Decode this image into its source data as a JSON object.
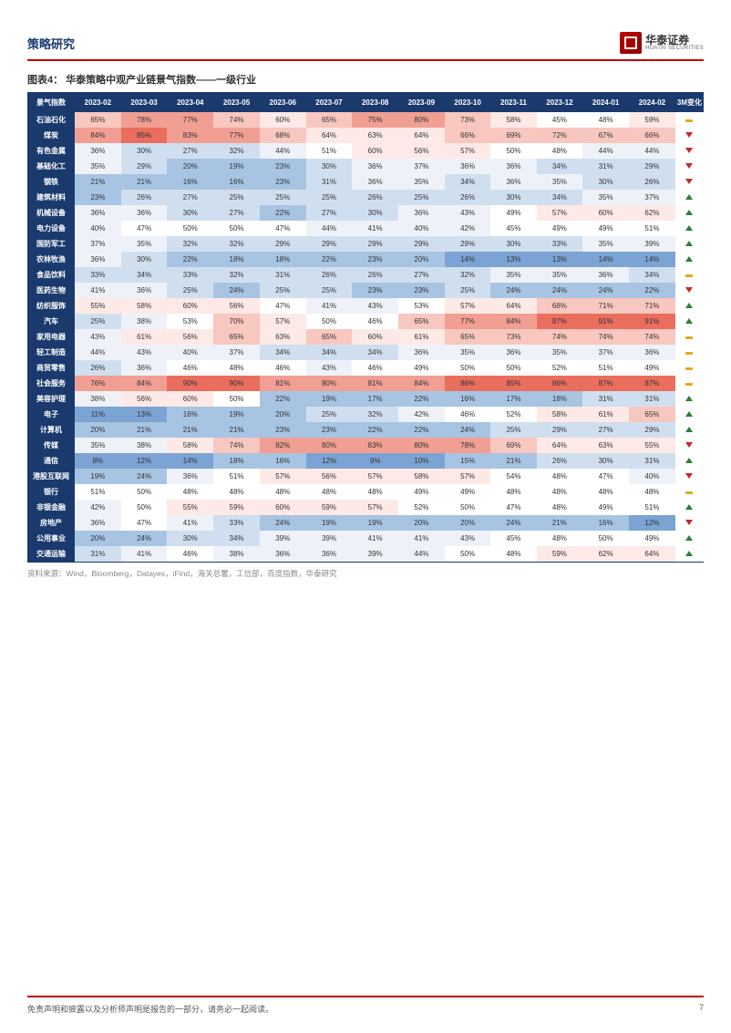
{
  "header": {
    "title": "策略研究",
    "logo_cn": "华泰证券",
    "logo_en": "HUATAI SECURITIES"
  },
  "chart": {
    "title": "图表4：  华泰策略中观产业链景气指数——一级行业",
    "corner_label": "景气指数",
    "columns": [
      "2023-02",
      "2023-03",
      "2023-04",
      "2023-05",
      "2023-06",
      "2023-07",
      "2023-08",
      "2023-09",
      "2023-10",
      "2023-11",
      "2023-12",
      "2024-01",
      "2024-02",
      "3M变化"
    ],
    "colors": {
      "header_bg": "#1a3a6e",
      "header_fg": "#ffffff",
      "up": "#2e7d32",
      "down": "#c62828",
      "flat": "#e6a817",
      "scale": [
        "#4f81bd",
        "#7ba3d3",
        "#a8c4e3",
        "#d0dff0",
        "#eef2f8",
        "#ffffff",
        "#fde9e6",
        "#f8c7bf",
        "#f19f93",
        "#ea6e5e",
        "#e14b3b"
      ]
    },
    "rows": [
      {
        "label": "石油石化",
        "v": [
          65,
          78,
          77,
          74,
          60,
          65,
          75,
          80,
          73,
          58,
          45,
          48,
          59
        ],
        "trend": "flat"
      },
      {
        "label": "煤炭",
        "v": [
          84,
          85,
          83,
          77,
          68,
          64,
          63,
          64,
          66,
          69,
          72,
          67,
          66
        ],
        "trend": "down"
      },
      {
        "label": "有色金属",
        "v": [
          36,
          30,
          27,
          32,
          44,
          51,
          60,
          56,
          57,
          50,
          48,
          44,
          44
        ],
        "trend": "down"
      },
      {
        "label": "基础化工",
        "v": [
          35,
          29,
          20,
          19,
          23,
          30,
          36,
          37,
          36,
          36,
          34,
          31,
          29
        ],
        "trend": "down"
      },
      {
        "label": "钢铁",
        "v": [
          21,
          21,
          16,
          16,
          23,
          31,
          36,
          35,
          34,
          36,
          35,
          30,
          26
        ],
        "trend": "down"
      },
      {
        "label": "建筑材料",
        "v": [
          23,
          26,
          27,
          25,
          25,
          25,
          26,
          25,
          26,
          30,
          34,
          35,
          37
        ],
        "trend": "up"
      },
      {
        "label": "机械设备",
        "v": [
          36,
          36,
          30,
          27,
          22,
          27,
          30,
          36,
          43,
          49,
          57,
          60,
          62
        ],
        "trend": "up"
      },
      {
        "label": "电力设备",
        "v": [
          40,
          47,
          50,
          50,
          47,
          44,
          41,
          40,
          42,
          45,
          49,
          49,
          51
        ],
        "trend": "up"
      },
      {
        "label": "国防军工",
        "v": [
          37,
          35,
          32,
          32,
          29,
          29,
          29,
          29,
          29,
          30,
          33,
          35,
          39
        ],
        "trend": "up"
      },
      {
        "label": "农林牧渔",
        "v": [
          36,
          30,
          22,
          18,
          18,
          22,
          23,
          20,
          14,
          13,
          13,
          14,
          14
        ],
        "trend": "up"
      },
      {
        "label": "食品饮料",
        "v": [
          33,
          34,
          33,
          32,
          31,
          26,
          26,
          27,
          32,
          35,
          35,
          36,
          34
        ],
        "trend": "flat"
      },
      {
        "label": "医药生物",
        "v": [
          41,
          36,
          25,
          24,
          25,
          25,
          23,
          23,
          25,
          24,
          24,
          24,
          22
        ],
        "trend": "down"
      },
      {
        "label": "纺织服饰",
        "v": [
          55,
          58,
          60,
          56,
          47,
          41,
          43,
          53,
          57,
          64,
          68,
          71,
          71
        ],
        "trend": "up"
      },
      {
        "label": "汽车",
        "v": [
          25,
          38,
          53,
          70,
          57,
          50,
          46,
          65,
          77,
          84,
          87,
          91,
          91
        ],
        "trend": "up"
      },
      {
        "label": "家用电器",
        "v": [
          43,
          61,
          56,
          65,
          63,
          65,
          60,
          61,
          65,
          73,
          74,
          74,
          74
        ],
        "trend": "flat"
      },
      {
        "label": "轻工制造",
        "v": [
          44,
          43,
          40,
          37,
          34,
          34,
          34,
          36,
          35,
          36,
          35,
          37,
          36
        ],
        "trend": "flat"
      },
      {
        "label": "商贸零售",
        "v": [
          26,
          36,
          46,
          48,
          46,
          43,
          46,
          49,
          50,
          50,
          52,
          51,
          49
        ],
        "trend": "flat"
      },
      {
        "label": "社会服务",
        "v": [
          76,
          84,
          90,
          90,
          81,
          80,
          81,
          84,
          86,
          85,
          86,
          87,
          87
        ],
        "trend": "flat"
      },
      {
        "label": "美容护理",
        "v": [
          38,
          56,
          60,
          50,
          22,
          19,
          17,
          22,
          16,
          17,
          18,
          31,
          31
        ],
        "trend": "up"
      },
      {
        "label": "电子",
        "v": [
          11,
          13,
          16,
          19,
          20,
          25,
          32,
          42,
          46,
          52,
          58,
          61,
          65
        ],
        "trend": "up"
      },
      {
        "label": "计算机",
        "v": [
          20,
          21,
          21,
          21,
          23,
          23,
          22,
          22,
          24,
          25,
          29,
          27,
          29
        ],
        "trend": "up"
      },
      {
        "label": "传媒",
        "v": [
          35,
          38,
          58,
          74,
          82,
          80,
          83,
          80,
          78,
          69,
          64,
          63,
          55
        ],
        "trend": "down"
      },
      {
        "label": "通信",
        "v": [
          8,
          12,
          14,
          18,
          16,
          12,
          9,
          10,
          15,
          21,
          26,
          30,
          31
        ],
        "trend": "up"
      },
      {
        "label": "港股互联网",
        "v": [
          19,
          24,
          36,
          51,
          57,
          56,
          57,
          58,
          57,
          54,
          48,
          47,
          40
        ],
        "trend": "down"
      },
      {
        "label": "银行",
        "v": [
          51,
          50,
          48,
          48,
          48,
          48,
          48,
          49,
          49,
          48,
          48,
          48,
          48
        ],
        "trend": "flat"
      },
      {
        "label": "非银金融",
        "v": [
          42,
          50,
          55,
          59,
          60,
          59,
          57,
          52,
          50,
          47,
          48,
          49,
          51
        ],
        "trend": "up"
      },
      {
        "label": "房地产",
        "v": [
          36,
          47,
          41,
          33,
          24,
          19,
          19,
          20,
          20,
          24,
          21,
          16,
          12
        ],
        "trend": "down"
      },
      {
        "label": "公用事业",
        "v": [
          20,
          24,
          30,
          34,
          39,
          39,
          41,
          41,
          43,
          45,
          48,
          50,
          49
        ],
        "trend": "up"
      },
      {
        "label": "交通运输",
        "v": [
          31,
          41,
          46,
          38,
          36,
          36,
          39,
          44,
          50,
          48,
          59,
          62,
          64
        ],
        "trend": "up"
      }
    ]
  },
  "source": "资料来源：Wind，Bloomberg，Datayes，iFind，海关总署，工信部，百度指数，华泰研究",
  "footer": {
    "disclaimer": "免责声明和披露以及分析师声明是报告的一部分，请务必一起阅读。",
    "page": "7"
  }
}
